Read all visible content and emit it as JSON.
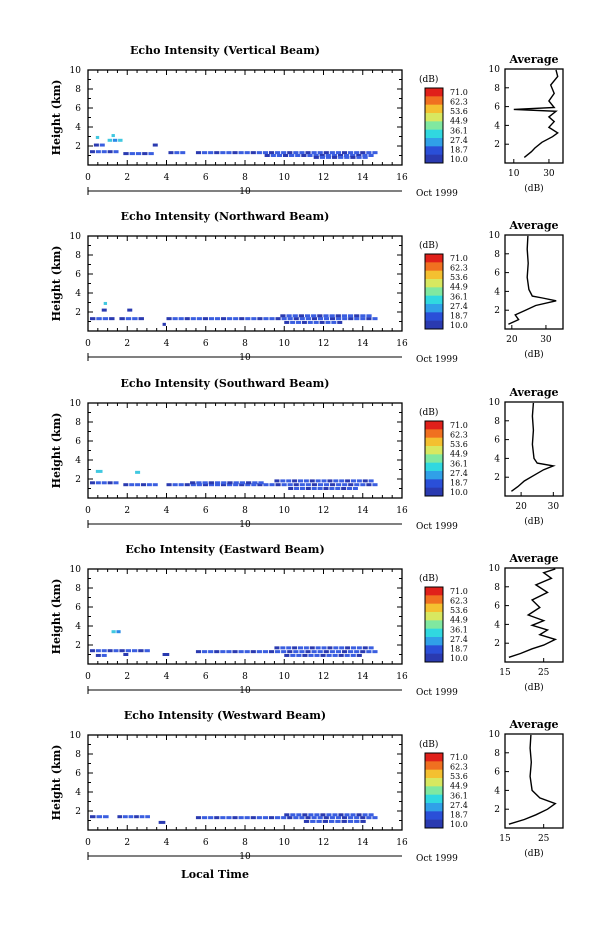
{
  "chart_data": {
    "type": "heatmap",
    "shared": {
      "x_ticks": [
        "0",
        "2",
        "4",
        "6",
        "8",
        "10",
        "12",
        "14",
        "16"
      ],
      "y_ticks": [
        "2",
        "4",
        "6",
        "8",
        "10"
      ],
      "xlim": [
        0,
        16
      ],
      "ylim": [
        0,
        10
      ],
      "date_number": "10",
      "date_label": "Oct 1999",
      "ylabel": "Height (km)",
      "xlabel": "Local Time",
      "colorbar_unit": "(dB)",
      "colorbar_ticks": [
        "71.0",
        "62.3",
        "53.6",
        "44.9",
        "36.1",
        "27.4",
        "18.7",
        "10.0"
      ],
      "colorbar_colors": [
        "#e0201a",
        "#f07020",
        "#f4c030",
        "#d8e860",
        "#80e8a0",
        "#30d8e0",
        "#30a0e8",
        "#2a4fd8",
        "#2a3ab0"
      ],
      "profile_title": "Average",
      "profile_xlabel": "(dB)"
    },
    "panels": [
      {
        "title": "Echo Intensity (Vertical Beam)",
        "echo_segments": [
          {
            "x0": 0.1,
            "x1": 1.6,
            "y": 1.4
          },
          {
            "x0": 1.8,
            "x1": 3.4,
            "y": 1.2
          },
          {
            "x0": 0.3,
            "x1": 0.9,
            "y": 2.1
          },
          {
            "x0": 1.0,
            "x1": 1.8,
            "y": 2.6
          },
          {
            "x0": 3.3,
            "x1": 3.6,
            "y": 2.1
          },
          {
            "x0": 0.4,
            "x1": 0.6,
            "y": 2.9
          },
          {
            "x0": 1.2,
            "x1": 1.4,
            "y": 3.1
          },
          {
            "x0": 5.5,
            "x1": 14.8,
            "y": 1.3
          },
          {
            "x0": 9.0,
            "x1": 14.6,
            "y": 1.0
          },
          {
            "x0": 4.1,
            "x1": 5.0,
            "y": 1.3
          },
          {
            "x0": 11.5,
            "x1": 14.3,
            "y": 0.8
          }
        ],
        "profile": {
          "xlim": [
            5,
            38
          ],
          "ticks": [
            "10",
            "30"
          ],
          "tick_values": [
            10,
            30
          ],
          "points": [
            [
              16,
              0.6
            ],
            [
              20,
              1.2
            ],
            [
              22,
              1.6
            ],
            [
              26,
              2.2
            ],
            [
              32,
              2.8
            ],
            [
              35,
              3.2
            ],
            [
              30,
              3.8
            ],
            [
              33,
              4.4
            ],
            [
              30,
              4.9
            ],
            [
              34,
              5.5
            ],
            [
              10,
              5.7
            ],
            [
              33,
              5.9
            ],
            [
              30,
              6.6
            ],
            [
              33,
              7.4
            ],
            [
              31,
              8.3
            ],
            [
              35,
              9.2
            ],
            [
              34,
              9.9
            ]
          ]
        }
      },
      {
        "title": "Echo Intensity (Northward Beam)",
        "echo_segments": [
          {
            "x0": 0.1,
            "x1": 1.4,
            "y": 1.3
          },
          {
            "x0": 1.6,
            "x1": 2.9,
            "y": 1.3
          },
          {
            "x0": 0.7,
            "x1": 1.0,
            "y": 2.2
          },
          {
            "x0": 0.8,
            "x1": 1.0,
            "y": 2.9
          },
          {
            "x0": 2.0,
            "x1": 2.3,
            "y": 2.2
          },
          {
            "x0": 4.0,
            "x1": 14.8,
            "y": 1.3
          },
          {
            "x0": 9.8,
            "x1": 14.5,
            "y": 1.6
          },
          {
            "x0": 10.0,
            "x1": 13.0,
            "y": 0.9
          },
          {
            "x0": 3.8,
            "x1": 4.0,
            "y": 0.7
          }
        ],
        "profile": {
          "xlim": [
            18,
            35
          ],
          "ticks": [
            "20",
            "30"
          ],
          "tick_values": [
            20,
            30
          ],
          "points": [
            [
              19,
              0.5
            ],
            [
              22,
              1.0
            ],
            [
              21,
              1.5
            ],
            [
              24,
              2.0
            ],
            [
              27,
              2.5
            ],
            [
              33,
              3.0
            ],
            [
              29,
              3.3
            ],
            [
              26,
              3.5
            ],
            [
              25,
              4.2
            ],
            [
              24.5,
              5.5
            ],
            [
              24.8,
              7.0
            ],
            [
              24.5,
              8.5
            ],
            [
              24.7,
              9.9
            ]
          ]
        }
      },
      {
        "title": "Echo Intensity (Southward Beam)",
        "echo_segments": [
          {
            "x0": 0.1,
            "x1": 1.6,
            "y": 1.6
          },
          {
            "x0": 1.8,
            "x1": 3.6,
            "y": 1.4
          },
          {
            "x0": 0.4,
            "x1": 0.8,
            "y": 2.8
          },
          {
            "x0": 2.4,
            "x1": 2.7,
            "y": 2.7
          },
          {
            "x0": 4.0,
            "x1": 14.8,
            "y": 1.4
          },
          {
            "x0": 9.5,
            "x1": 14.6,
            "y": 1.8
          },
          {
            "x0": 10.2,
            "x1": 13.8,
            "y": 1.0
          },
          {
            "x0": 5.2,
            "x1": 9.0,
            "y": 1.6
          }
        ],
        "profile": {
          "xlim": [
            15,
            33
          ],
          "ticks": [
            "20",
            "30"
          ],
          "tick_values": [
            20,
            30
          ],
          "points": [
            [
              17,
              0.5
            ],
            [
              19,
              1.0
            ],
            [
              21,
              1.6
            ],
            [
              24,
              2.2
            ],
            [
              27,
              2.8
            ],
            [
              30,
              3.2
            ],
            [
              25,
              3.5
            ],
            [
              24,
              4.0
            ],
            [
              23.5,
              5.5
            ],
            [
              23.8,
              7.0
            ],
            [
              23.5,
              8.5
            ],
            [
              23.8,
              9.9
            ]
          ]
        }
      },
      {
        "title": "Echo Intensity (Eastward Beam)",
        "echo_segments": [
          {
            "x0": 0.1,
            "x1": 1.6,
            "y": 1.4
          },
          {
            "x0": 1.6,
            "x1": 3.2,
            "y": 1.4
          },
          {
            "x0": 0.4,
            "x1": 1.0,
            "y": 0.9
          },
          {
            "x0": 1.2,
            "x1": 1.7,
            "y": 3.4
          },
          {
            "x0": 1.8,
            "x1": 2.1,
            "y": 1.0
          },
          {
            "x0": 3.8,
            "x1": 4.2,
            "y": 1.0
          },
          {
            "x0": 5.5,
            "x1": 14.8,
            "y": 1.3
          },
          {
            "x0": 9.5,
            "x1": 14.6,
            "y": 1.7
          },
          {
            "x0": 10.0,
            "x1": 14.0,
            "y": 0.9
          }
        ],
        "profile": {
          "xlim": [
            15,
            30
          ],
          "ticks": [
            "15",
            "25"
          ],
          "tick_values": [
            15,
            25
          ],
          "points": [
            [
              16,
              0.5
            ],
            [
              19,
              0.9
            ],
            [
              22,
              1.4
            ],
            [
              25,
              1.8
            ],
            [
              28,
              2.4
            ],
            [
              24,
              2.9
            ],
            [
              26,
              3.4
            ],
            [
              22,
              3.9
            ],
            [
              25,
              4.4
            ],
            [
              21,
              5.0
            ],
            [
              24,
              5.8
            ],
            [
              22,
              6.6
            ],
            [
              26,
              7.4
            ],
            [
              23,
              8.2
            ],
            [
              27,
              8.9
            ],
            [
              25,
              9.5
            ],
            [
              28,
              9.9
            ]
          ]
        }
      },
      {
        "title": "Echo Intensity (Westward Beam)",
        "echo_segments": [
          {
            "x0": 0.1,
            "x1": 1.1,
            "y": 1.4
          },
          {
            "x0": 1.5,
            "x1": 3.2,
            "y": 1.4
          },
          {
            "x0": 3.6,
            "x1": 4.0,
            "y": 0.8
          },
          {
            "x0": 5.5,
            "x1": 14.8,
            "y": 1.3
          },
          {
            "x0": 10.0,
            "x1": 14.6,
            "y": 1.6
          },
          {
            "x0": 11.0,
            "x1": 14.2,
            "y": 0.9
          }
        ],
        "profile": {
          "xlim": [
            15,
            30
          ],
          "ticks": [
            "15",
            "25"
          ],
          "tick_values": [
            15,
            25
          ],
          "points": [
            [
              16,
              0.4
            ],
            [
              20,
              0.9
            ],
            [
              23,
              1.4
            ],
            [
              26,
              2.0
            ],
            [
              28,
              2.6
            ],
            [
              24,
              3.2
            ],
            [
              22,
              4.0
            ],
            [
              21.5,
              5.5
            ],
            [
              21.8,
              7.0
            ],
            [
              21.5,
              8.5
            ],
            [
              21.7,
              9.9
            ]
          ]
        }
      }
    ]
  }
}
